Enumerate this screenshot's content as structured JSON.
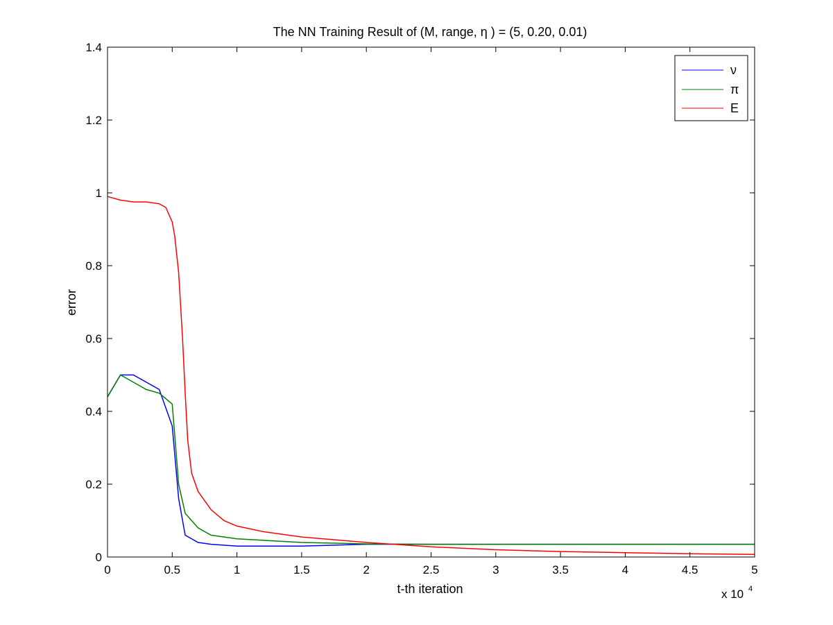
{
  "chart_data": {
    "type": "line",
    "title": "The NN Training Result of (M, range, η ) = (5, 0.20, 0.01)",
    "xlabel": "t-th iteration",
    "ylabel": "error",
    "x_multiplier": "x 10",
    "x_multiplier_exp": "4",
    "xlim": [
      0,
      5
    ],
    "ylim": [
      0,
      1.4
    ],
    "xticks": [
      "0",
      "0.5",
      "1",
      "1.5",
      "2",
      "2.5",
      "3",
      "3.5",
      "4",
      "4.5",
      "5"
    ],
    "yticks": [
      "0",
      "0.2",
      "0.4",
      "0.6",
      "0.8",
      "1",
      "1.2",
      "1.4"
    ],
    "grid": false,
    "legend_position": "top-right",
    "series": [
      {
        "name": "ν",
        "color": "#0000ff",
        "x": [
          0,
          0.1,
          0.2,
          0.3,
          0.4,
          0.5,
          0.55,
          0.6,
          0.7,
          0.8,
          1.0,
          1.5,
          2.0,
          2.1,
          2.5,
          3.0,
          4.0,
          5.0
        ],
        "y": [
          0.44,
          0.5,
          0.5,
          0.48,
          0.46,
          0.36,
          0.16,
          0.06,
          0.04,
          0.035,
          0.03,
          0.03,
          0.035,
          0.035,
          0.035,
          0.035,
          0.035,
          0.035
        ]
      },
      {
        "name": "π",
        "color": "#008000",
        "x": [
          0,
          0.1,
          0.2,
          0.3,
          0.4,
          0.5,
          0.55,
          0.6,
          0.7,
          0.8,
          1.0,
          1.5,
          2.0,
          2.5,
          3.0,
          4.0,
          5.0
        ],
        "y": [
          0.44,
          0.5,
          0.48,
          0.46,
          0.45,
          0.42,
          0.2,
          0.12,
          0.08,
          0.06,
          0.05,
          0.04,
          0.036,
          0.035,
          0.035,
          0.035,
          0.035
        ]
      },
      {
        "name": "E",
        "color": "#ff0000",
        "x": [
          0,
          0.1,
          0.2,
          0.3,
          0.4,
          0.45,
          0.5,
          0.52,
          0.55,
          0.58,
          0.6,
          0.62,
          0.65,
          0.7,
          0.8,
          0.9,
          1.0,
          1.2,
          1.5,
          2.0,
          2.5,
          3.0,
          3.5,
          4.0,
          4.5,
          5.0
        ],
        "y": [
          0.99,
          0.98,
          0.975,
          0.975,
          0.97,
          0.96,
          0.92,
          0.88,
          0.78,
          0.6,
          0.45,
          0.32,
          0.23,
          0.18,
          0.13,
          0.1,
          0.085,
          0.07,
          0.055,
          0.04,
          0.028,
          0.02,
          0.015,
          0.012,
          0.009,
          0.007
        ]
      }
    ]
  }
}
